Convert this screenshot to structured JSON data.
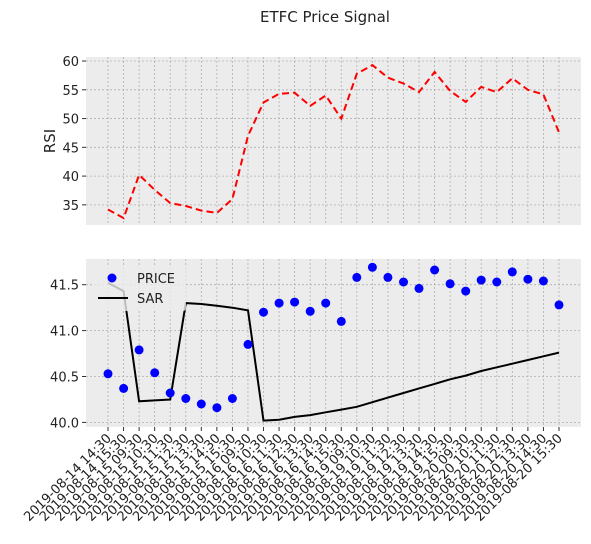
{
  "figure": {
    "title": "ETFC Price Signal"
  },
  "chart_data": [
    {
      "type": "line",
      "ylabel": "RSI",
      "xlabel": "",
      "ylim": [
        31.5,
        60.7
      ],
      "yticks": [
        35,
        40,
        45,
        50,
        55,
        60
      ],
      "grid": true,
      "series": [
        {
          "values": [
            34.2,
            32.7,
            40.2,
            37.6,
            35.3,
            34.8,
            34.0,
            33.6,
            36.0,
            47.0,
            52.8,
            54.3,
            54.5,
            52.2,
            54.0,
            50.0,
            57.8,
            59.3,
            57.1,
            56.1,
            54.6,
            58.1,
            54.8,
            52.9,
            55.5,
            54.6,
            57.0,
            55.0,
            54.2,
            47.6
          ],
          "color": "#ff0000",
          "style": "dashed"
        }
      ]
    },
    {
      "type": "line+scatter",
      "ylabel": "",
      "xlabel": "",
      "ylim": [
        39.95,
        41.78
      ],
      "yticks": [
        40.0,
        40.5,
        41.0,
        41.5
      ],
      "grid": true,
      "legend": "top-left",
      "categories": [
        "2019-08-14 14:30",
        "2019-08-14 15:30",
        "2019-08-15 09:30",
        "2019-08-15 10:30",
        "2019-08-15 11:30",
        "2019-08-15 12:30",
        "2019-08-15 13:30",
        "2019-08-15 14:30",
        "2019-08-15 15:30",
        "2019-08-16 09:30",
        "2019-08-16 10:30",
        "2019-08-16 11:30",
        "2019-08-16 12:30",
        "2019-08-16 13:30",
        "2019-08-16 14:30",
        "2019-08-16 15:30",
        "2019-08-19 09:30",
        "2019-08-19 10:30",
        "2019-08-19 11:30",
        "2019-08-19 12:30",
        "2019-08-19 13:30",
        "2019-08-19 14:30",
        "2019-08-19 15:30",
        "2019-08-20 09:30",
        "2019-08-20 10:30",
        "2019-08-20 11:30",
        "2019-08-20 12:30",
        "2019-08-20 13:30",
        "2019-08-20 14:30",
        "2019-08-20 15:30"
      ],
      "series": [
        {
          "name": "PRICE",
          "kind": "scatter",
          "color": "#0000ff",
          "values": [
            40.53,
            40.37,
            40.79,
            40.54,
            40.32,
            40.26,
            40.2,
            40.16,
            40.26,
            40.85,
            41.2,
            41.3,
            41.31,
            41.21,
            41.3,
            41.1,
            41.58,
            41.69,
            41.58,
            41.53,
            41.46,
            41.66,
            41.51,
            41.43,
            41.55,
            41.53,
            41.64,
            41.56,
            41.54,
            41.28
          ]
        },
        {
          "name": "SAR",
          "kind": "line",
          "color": "#000000",
          "values": [
            41.52,
            41.43,
            40.23,
            40.24,
            40.25,
            41.3,
            41.29,
            41.27,
            41.25,
            41.22,
            40.02,
            40.03,
            40.06,
            40.08,
            40.11,
            40.14,
            40.17,
            40.22,
            40.27,
            40.32,
            40.37,
            40.42,
            40.47,
            40.51,
            40.56,
            40.6,
            40.64,
            40.68,
            40.72,
            40.76
          ]
        }
      ]
    }
  ]
}
